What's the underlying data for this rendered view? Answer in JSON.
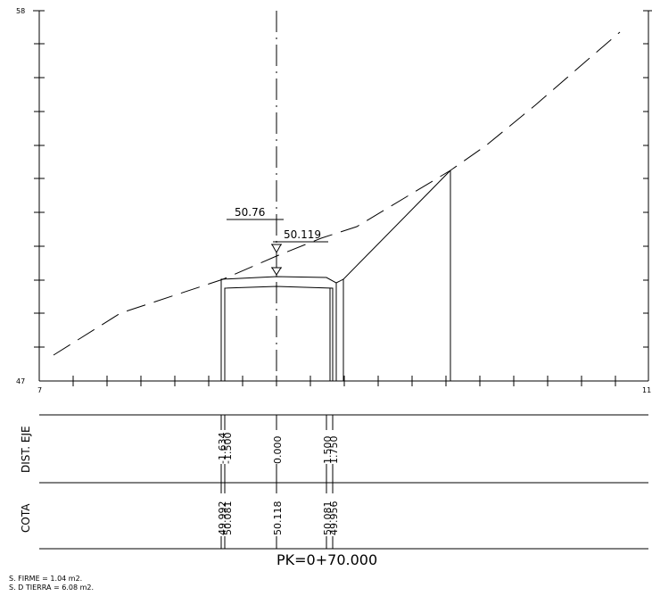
{
  "axis": {
    "y_top_label": "58",
    "y_bottom_label": "47",
    "x_left_label": "7",
    "x_right_label": "11"
  },
  "annotations": {
    "level_1": "50.76",
    "level_2": "50.119"
  },
  "table": {
    "row_labels": [
      "DIST. EJE",
      "COTA"
    ],
    "dist_values": [
      "-1.634",
      "-1.500",
      "0.000",
      "1.500",
      "1.750"
    ],
    "cota_values": [
      "49.992",
      "50.081",
      "50.118",
      "50.081",
      "49.956"
    ]
  },
  "section_title": "PK=0+70.000",
  "footer": {
    "firme": "S. FIRME =    1.04 m2.",
    "tierra": "S. D TIERRA =    6.08 m2."
  },
  "colors": {
    "line": "#000000",
    "background": "#ffffff"
  }
}
